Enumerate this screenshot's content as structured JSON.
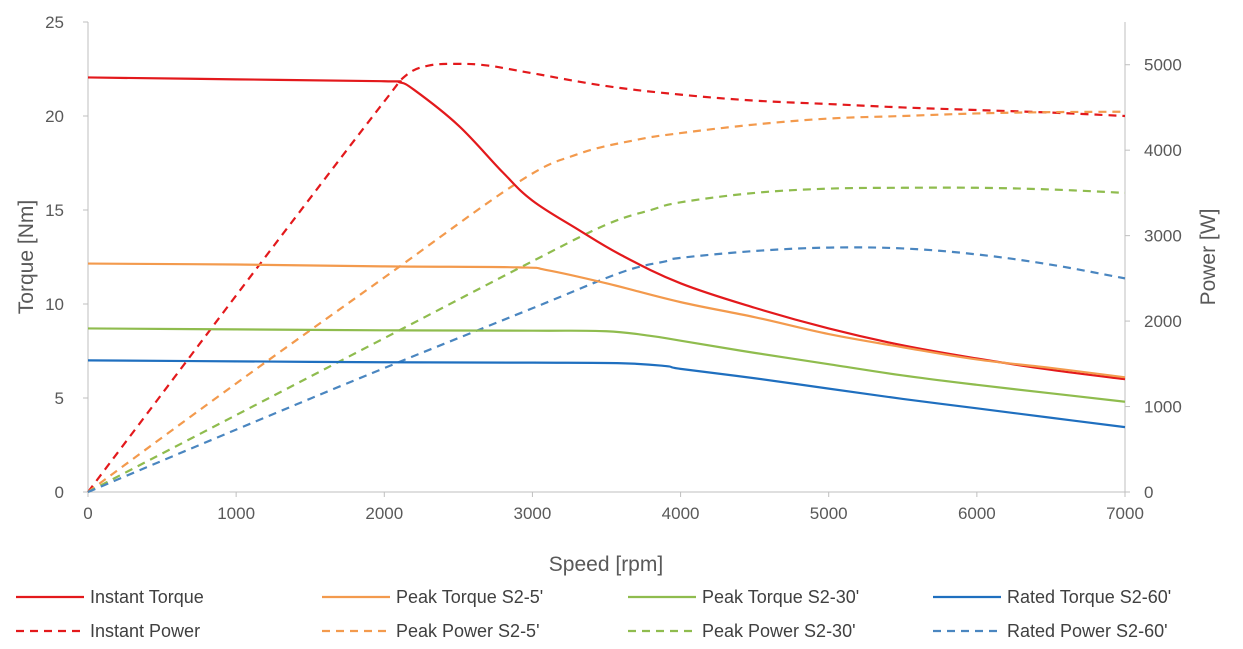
{
  "chart_data": {
    "type": "line",
    "xlabel": "Speed [rpm]",
    "ylabel": "Torque [Nm]",
    "y2label": "Power [W]",
    "xlim": [
      0,
      7000
    ],
    "ylim": [
      0,
      25
    ],
    "y2lim": [
      0,
      5500
    ],
    "xticks": [
      "0",
      "1000",
      "2000",
      "3000",
      "4000",
      "5000",
      "6000",
      "7000"
    ],
    "yticks": [
      "0",
      "5",
      "10",
      "15",
      "20",
      "25"
    ],
    "y2ticks": [
      "0",
      "1000",
      "2000",
      "3000",
      "4000",
      "5000"
    ],
    "grid": false,
    "legend_position": "bottom",
    "series": [
      {
        "name": "Instant Torque",
        "axis": "left",
        "style": "solid",
        "color": "#e3191c",
        "x": [
          0,
          1000,
          2000,
          2100,
          2200,
          2500,
          2800,
          3000,
          3300,
          3600,
          4000,
          4500,
          5000,
          5500,
          6000,
          6500,
          7000
        ],
        "y": [
          22.05,
          21.95,
          21.85,
          21.8,
          21.4,
          19.5,
          17.0,
          15.5,
          14.0,
          12.6,
          11.1,
          9.8,
          8.7,
          7.8,
          7.1,
          6.5,
          6.0
        ]
      },
      {
        "name": "Peak Torque S2-5'",
        "axis": "left",
        "style": "solid",
        "color": "#f39a4d",
        "x": [
          0,
          1000,
          2000,
          2900,
          3100,
          3500,
          4000,
          4500,
          5000,
          5500,
          6000,
          6500,
          7000
        ],
        "y": [
          12.15,
          12.1,
          12.0,
          11.95,
          11.8,
          11.1,
          10.1,
          9.3,
          8.4,
          7.7,
          7.05,
          6.6,
          6.1
        ]
      },
      {
        "name": "Peak Torque S2-30'",
        "axis": "left",
        "style": "solid",
        "color": "#8fbc4e",
        "x": [
          0,
          1000,
          2000,
          3000,
          3500,
          3800,
          4000,
          4500,
          5000,
          5500,
          6000,
          6500,
          7000
        ],
        "y": [
          8.7,
          8.65,
          8.6,
          8.58,
          8.55,
          8.3,
          8.05,
          7.4,
          6.8,
          6.2,
          5.7,
          5.25,
          4.8
        ]
      },
      {
        "name": "Rated Torque S2-60'",
        "axis": "left",
        "style": "solid",
        "color": "#1f6fbf",
        "x": [
          0,
          1000,
          2000,
          3000,
          3600,
          3900,
          4000,
          4500,
          5000,
          5500,
          6000,
          6500,
          7000
        ],
        "y": [
          7.0,
          6.95,
          6.9,
          6.88,
          6.85,
          6.7,
          6.55,
          6.05,
          5.5,
          4.95,
          4.45,
          3.95,
          3.45
        ]
      },
      {
        "name": "Instant Power",
        "axis": "right",
        "style": "dashed",
        "color": "#e3191c",
        "x": [
          0,
          500,
          1000,
          1500,
          2000,
          2150,
          2300,
          2500,
          2700,
          3000,
          3500,
          4000,
          4500,
          5000,
          5500,
          6000,
          6500,
          7000
        ],
        "y": [
          0,
          1150,
          2300,
          3440,
          4570,
          4880,
          4990,
          5010,
          4990,
          4900,
          4750,
          4650,
          4580,
          4540,
          4500,
          4470,
          4440,
          4400
        ]
      },
      {
        "name": "Peak Power S2-5'",
        "axis": "right",
        "style": "dashed",
        "color": "#f39a4d",
        "x": [
          0,
          1000,
          2000,
          2900,
          3300,
          3700,
          4000,
          4500,
          5000,
          5500,
          6000,
          6500,
          7000
        ],
        "y": [
          0,
          1270,
          2510,
          3620,
          3950,
          4120,
          4200,
          4300,
          4370,
          4400,
          4430,
          4445,
          4450
        ]
      },
      {
        "name": "Peak Power S2-30'",
        "axis": "right",
        "style": "dashed",
        "color": "#8fbc4e",
        "x": [
          0,
          1000,
          2000,
          3000,
          3500,
          3800,
          4000,
          4500,
          5000,
          5500,
          6000,
          6500,
          7000
        ],
        "y": [
          0,
          900,
          1800,
          2700,
          3130,
          3300,
          3390,
          3500,
          3550,
          3560,
          3560,
          3540,
          3500
        ]
      },
      {
        "name": "Rated Power S2-60'",
        "axis": "right",
        "style": "dashed",
        "color": "#4a86c0",
        "x": [
          0,
          1000,
          2000,
          3000,
          3600,
          3900,
          4000,
          4500,
          5000,
          5500,
          6000,
          6500,
          7000
        ],
        "y": [
          0,
          730,
          1450,
          2150,
          2570,
          2700,
          2740,
          2820,
          2860,
          2850,
          2780,
          2660,
          2500
        ]
      }
    ]
  }
}
